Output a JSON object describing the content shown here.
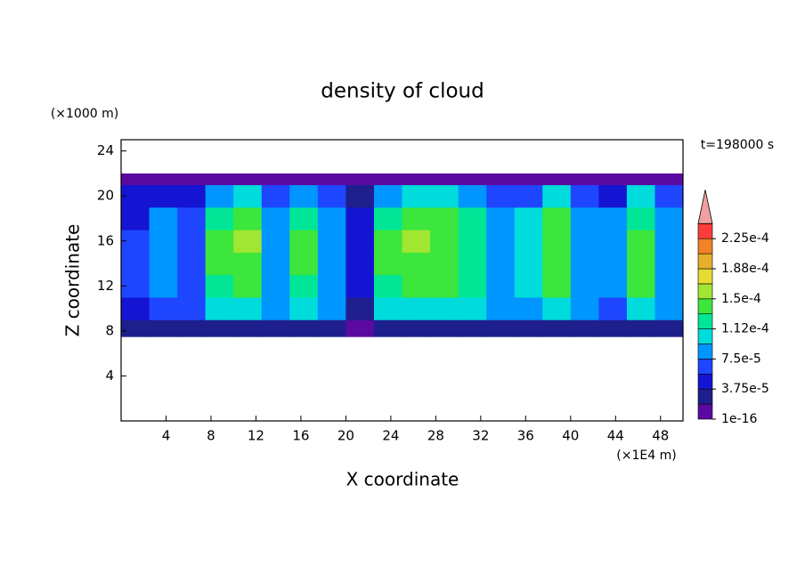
{
  "chart_data": {
    "type": "contour",
    "title": "density of cloud",
    "y_unit_label": "(×1000 m)",
    "ylabel": "Z coordinate",
    "xlabel": "X coordinate",
    "x_unit_label": "(×1E4 m)",
    "annotation": "t=198000 s",
    "xlim": [
      0,
      50
    ],
    "ylim": [
      0,
      25
    ],
    "xticks": [
      4,
      8,
      12,
      16,
      20,
      24,
      28,
      32,
      36,
      40,
      44,
      48
    ],
    "yticks": [
      4,
      8,
      12,
      16,
      20,
      24
    ],
    "field": {
      "x_edges": [
        0,
        2.5,
        5,
        7.5,
        10,
        12.5,
        15,
        17.5,
        20,
        22.5,
        25,
        27.5,
        30,
        32.5,
        35,
        37.5,
        40,
        42.5,
        45,
        47.5,
        50
      ],
      "z_edges": [
        7.5,
        9,
        11,
        13,
        15,
        17,
        19,
        21,
        22
      ],
      "values": [
        [
          2e-05,
          2e-05,
          2e-05,
          2e-05,
          2e-05,
          2e-05,
          2e-05,
          2e-05,
          1e-05,
          2e-05,
          2e-05,
          2e-05,
          2e-05,
          2e-05,
          2e-05,
          2e-05,
          2e-05,
          2e-05,
          2e-05,
          2e-05
        ],
        [
          5.5e-05,
          7e-05,
          6e-05,
          0.000105,
          0.000105,
          8e-05,
          0.000105,
          8e-05,
          3e-05,
          0.000105,
          0.000105,
          0.000105,
          0.000105,
          8e-05,
          9e-05,
          0.000105,
          8e-05,
          7e-05,
          0.000105,
          8e-05
        ],
        [
          6e-05,
          8e-05,
          7e-05,
          0.00013,
          0.000135,
          9e-05,
          0.00013,
          9e-05,
          4e-05,
          0.00013,
          0.00014,
          0.00014,
          0.00012,
          9e-05,
          0.0001,
          0.00014,
          9e-05,
          8e-05,
          0.000135,
          9e-05
        ],
        [
          6e-05,
          8e-05,
          7e-05,
          0.000135,
          0.00014,
          9e-05,
          0.000135,
          9e-05,
          4e-05,
          0.000135,
          0.000145,
          0.000145,
          0.000125,
          9e-05,
          0.0001,
          0.00014,
          9e-05,
          8e-05,
          0.000135,
          9e-05
        ],
        [
          6e-05,
          8e-05,
          7e-05,
          0.00014,
          0.00015,
          9e-05,
          0.000135,
          9e-05,
          4e-05,
          0.000135,
          0.00015,
          0.000145,
          0.000125,
          9e-05,
          0.0001,
          0.00014,
          9e-05,
          8e-05,
          0.000135,
          9e-05
        ],
        [
          5.5e-05,
          7.5e-05,
          6.5e-05,
          0.00013,
          0.000135,
          8.5e-05,
          0.000125,
          8.5e-05,
          4e-05,
          0.000125,
          0.000135,
          0.000135,
          0.000115,
          8.5e-05,
          9.5e-05,
          0.000135,
          8.5e-05,
          7.5e-05,
          0.00013,
          8.5e-05
        ],
        [
          4e-05,
          5.5e-05,
          5e-05,
          9e-05,
          9.5e-05,
          6.5e-05,
          9e-05,
          6.5e-05,
          3e-05,
          9e-05,
          0.0001,
          0.0001,
          8.5e-05,
          6.5e-05,
          7e-05,
          0.0001,
          6.5e-05,
          5.5e-05,
          9.5e-05,
          6.5e-05
        ],
        [
          1e-05,
          1e-05,
          1e-05,
          1e-05,
          1e-05,
          1e-05,
          1e-05,
          1e-05,
          1e-05,
          1e-05,
          1e-05,
          1e-05,
          1e-05,
          1e-05,
          1e-05,
          1e-05,
          1e-05,
          1e-05,
          1e-05,
          1e-05
        ]
      ]
    },
    "colorbar": {
      "levels": [
        1e-16,
        1.875e-05,
        3.75e-05,
        5.625e-05,
        7.5e-05,
        9.375e-05,
        0.000112,
        0.00013125,
        0.00015,
        0.00016875,
        0.000188,
        0.00020625,
        0.000225,
        0.00024375
      ],
      "colors": [
        "#5a0aa0",
        "#1e1e8c",
        "#1414d2",
        "#1e46ff",
        "#0096ff",
        "#00dcdc",
        "#00e696",
        "#3ce63c",
        "#a0e632",
        "#e6dc32",
        "#e6af2d",
        "#f08228",
        "#fa3c3c"
      ],
      "over_color": "#f0a0a0",
      "ticks": [
        {
          "value": 1e-16,
          "label": "1e-16"
        },
        {
          "value": 3.75e-05,
          "label": "3.75e-5"
        },
        {
          "value": 7.5e-05,
          "label": "7.5e-5"
        },
        {
          "value": 0.000112,
          "label": "1.12e-4"
        },
        {
          "value": 0.00015,
          "label": "1.5e-4"
        },
        {
          "value": 0.000188,
          "label": "1.88e-4"
        },
        {
          "value": 0.000225,
          "label": "2.25e-4"
        }
      ]
    }
  }
}
